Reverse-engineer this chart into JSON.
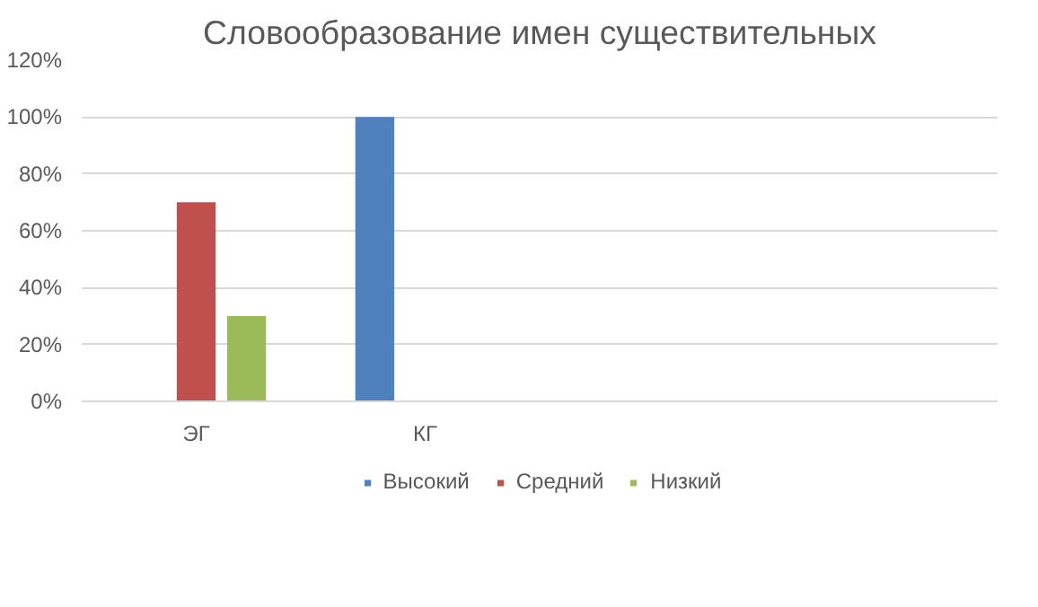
{
  "chart_data": {
    "type": "bar",
    "title": "Словообразование имен существительных",
    "categories": [
      "ЭГ",
      "КГ",
      null,
      null
    ],
    "series": [
      {
        "name": "Высокий",
        "color": "#4f81bd",
        "values": [
          0,
          100,
          null,
          null
        ]
      },
      {
        "name": "Средний",
        "color": "#c0504d",
        "values": [
          70,
          0,
          null,
          null
        ]
      },
      {
        "name": "Низкий",
        "color": "#9bbb59",
        "values": [
          30,
          0,
          null,
          null
        ]
      }
    ],
    "ylim": [
      0,
      120
    ],
    "yticks": [
      {
        "value": 0,
        "label": "0%"
      },
      {
        "value": 20,
        "label": "20%"
      },
      {
        "value": 40,
        "label": "40%"
      },
      {
        "value": 60,
        "label": "60%"
      },
      {
        "value": 80,
        "label": "80%"
      },
      {
        "value": 100,
        "label": "100%"
      },
      {
        "value": 120,
        "label": "120%"
      }
    ],
    "grid": "y",
    "legend": "bottom"
  }
}
